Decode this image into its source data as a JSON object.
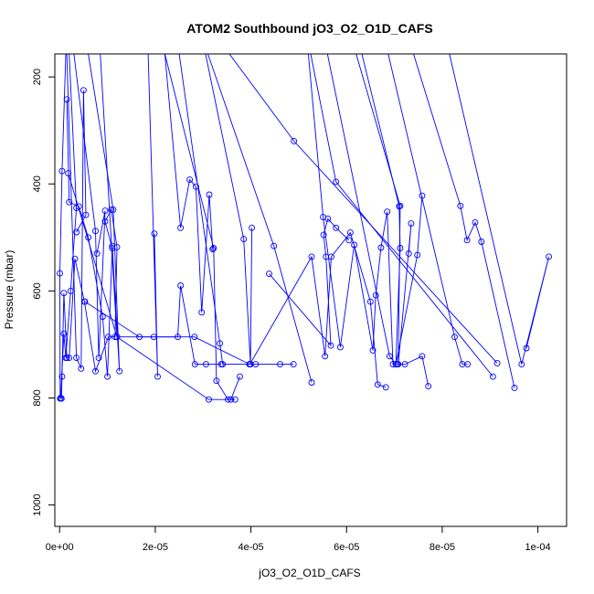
{
  "chart_data": {
    "type": "line",
    "title": "ATOM2 Southbound jO3_O2_O1D_CAFS",
    "xlabel": "jO3_O2_O1D_CAFS",
    "ylabel": "Pressure (mbar)",
    "xlim": [
      -1e-06,
      0.000106
    ],
    "ylim": [
      1040,
      157
    ],
    "y_inverted": true,
    "grid": false,
    "line_color": "#0000ff",
    "x_ticks": [
      {
        "value": 0,
        "label": "0e+00"
      },
      {
        "value": 2e-05,
        "label": "2e-05"
      },
      {
        "value": 4e-05,
        "label": "4e-05"
      },
      {
        "value": 6e-05,
        "label": "6e-05"
      },
      {
        "value": 8e-05,
        "label": "8e-05"
      },
      {
        "value": 0.0001,
        "label": "1e-04"
      }
    ],
    "y_ticks": [
      {
        "value": 200,
        "label": "200"
      },
      {
        "value": 400,
        "label": "400"
      },
      {
        "value": 600,
        "label": "600"
      },
      {
        "value": 800,
        "label": "800"
      },
      {
        "value": 1000,
        "label": "1000"
      }
    ],
    "series": [
      {
        "x": [
          1.3e-06,
          5e-07,
          5e-08,
          1e-07,
          4e-07,
          9e-07,
          1.5e-06,
          2e-06,
          3.2e-06,
          5.2e-06,
          7.5e-06,
          1.02e-05,
          1.16e-05,
          1.2e-05,
          1.08e-05,
          9.5e-06,
          1.1e-05,
          1e-05,
          9e-06,
          6e-06,
          4e-06,
          2e-06,
          1.5e-06
        ],
        "y": [
          157,
          376,
          567,
          801,
          801,
          604,
          725,
          725,
          540,
          620,
          750,
          686,
          686,
          518,
          448,
          470,
          520,
          760,
          648,
          500,
          442,
          434,
          242
        ]
      },
      {
        "x": [
          1.5e-06,
          3.5e-06,
          4.5e-06,
          5e-06,
          5.5e-06,
          3.5e-06
        ],
        "y": [
          157,
          725,
          745,
          225,
          458,
          490
        ]
      },
      {
        "x": [
          3e-06,
          7.5e-06,
          8.2e-06,
          9.5e-06,
          7.8e-06
        ],
        "y": [
          157,
          488,
          725,
          450,
          530
        ]
      },
      {
        "x": [
          6e-06,
          1.12e-05,
          1.25e-05,
          1.1e-05
        ],
        "y": [
          157,
          448,
          750,
          516
        ]
      },
      {
        "x": [
          1.8e-06,
          1.2e-05,
          2.82e-05,
          3.97e-05,
          4.1e-05
        ],
        "y": [
          380,
          686,
          686,
          737,
          737
        ]
      },
      {
        "x": [
          5.3e-06,
          1.67e-05,
          1.97e-05,
          2.47e-05,
          2.53e-05,
          2.83e-05,
          3.06e-05,
          3.38e-05
        ],
        "y": [
          620,
          686,
          686,
          686,
          590,
          737,
          737,
          737
        ]
      },
      {
        "x": [
          8.5e-06,
          1.2e-05,
          3.12e-05,
          3.67e-05
        ],
        "y": [
          157,
          686,
          803,
          803
        ]
      },
      {
        "x": [
          1.85e-05,
          2.05e-05,
          1.98e-05
        ],
        "y": [
          157,
          760,
          493
        ]
      },
      {
        "x": [
          2.2e-05,
          2.53e-05,
          2.72e-05,
          2.85e-05,
          2.97e-05,
          3.13e-05,
          3.2e-05
        ],
        "y": [
          157,
          482,
          392,
          405,
          640,
          420,
          522
        ]
      },
      {
        "x": [
          2.2e-05,
          3.22e-05,
          3.28e-05,
          3.52e-05,
          3.58e-05,
          3.77e-05
        ],
        "y": [
          157,
          520,
          768,
          803,
          803,
          760
        ]
      },
      {
        "x": [
          2.5e-05,
          3.35e-05,
          3.41e-05,
          3.97e-05,
          4.61e-05,
          4.89e-05
        ],
        "y": [
          157,
          698,
          737,
          737,
          737,
          737
        ]
      },
      {
        "x": [
          3.05e-05,
          3.85e-05,
          3.99e-05,
          4.02e-05
        ],
        "y": [
          157,
          503,
          737,
          482
        ]
      },
      {
        "x": [
          3.1e-05,
          4.48e-05,
          5.27e-05
        ],
        "y": [
          157,
          516,
          771
        ]
      },
      {
        "x": [
          3.98e-05,
          5.27e-05,
          5.55e-05,
          5.68e-05,
          6.08e-05,
          6.5e-05,
          6.65e-05,
          6.82e-05
        ],
        "y": [
          737,
          536,
          722,
          536,
          491,
          620,
          775,
          780
        ]
      },
      {
        "x": [
          4.38e-05,
          5.67e-05,
          5.57e-05,
          5.52e-05,
          5.61e-05,
          5.78e-05,
          6.05e-05
        ],
        "y": [
          568,
          702,
          536,
          495,
          465,
          482,
          505
        ]
      },
      {
        "x": [
          5.2e-05,
          5.51e-05,
          5.87e-05,
          6.16e-05,
          6.55e-05,
          6.61e-05,
          6.72e-05,
          6.85e-05,
          6.97e-05,
          7.06e-05
        ],
        "y": [
          157,
          462,
          705,
          514,
          711,
          608,
          519,
          452,
          737,
          737
        ]
      },
      {
        "x": [
          5.6e-05,
          6.9e-05,
          7.03e-05,
          7.22e-05,
          7.58e-05,
          7.71e-05
        ],
        "y": [
          157,
          722,
          737,
          737,
          722,
          778
        ]
      },
      {
        "x": [
          6.32e-05,
          7.1e-05,
          7.12e-05,
          7.03e-05,
          7.48e-05,
          7.58e-05
        ],
        "y": [
          157,
          442,
          520,
          737,
          533,
          422
        ]
      },
      {
        "x": [
          6.2e-05,
          7.12e-05,
          7.08e-05,
          7.35e-05,
          7.3e-05
        ],
        "y": [
          157,
          441,
          737,
          474,
          530
        ]
      },
      {
        "x": [
          6.87e-05,
          8.26e-05,
          8.42e-05,
          8.53e-05
        ],
        "y": [
          157,
          686,
          737,
          737
        ]
      },
      {
        "x": [
          7.4e-05,
          8.38e-05,
          8.52e-05,
          8.69e-05,
          8.82e-05,
          9.51e-05
        ],
        "y": [
          157,
          441,
          505,
          472,
          508,
          781
        ]
      },
      {
        "x": [
          8.15e-05,
          9.66e-05,
          0.0001023,
          9.76e-05
        ],
        "y": [
          157,
          737,
          536,
          707
        ]
      },
      {
        "x": [
          5.25e-05,
          5.78e-05,
          9.06e-05
        ],
        "y": [
          157,
          396,
          760
        ]
      },
      {
        "x": [
          3.55e-05,
          4.9e-05,
          9.15e-05
        ],
        "y": [
          157,
          320,
          735
        ]
      },
      {
        "x": [
          2e-06,
          3.5e-06,
          2.3e-06,
          1.3e-06,
          9e-07,
          2e-07,
          5e-07
        ],
        "y": [
          157,
          445,
          600,
          725,
          680,
          800,
          760
        ]
      }
    ]
  }
}
